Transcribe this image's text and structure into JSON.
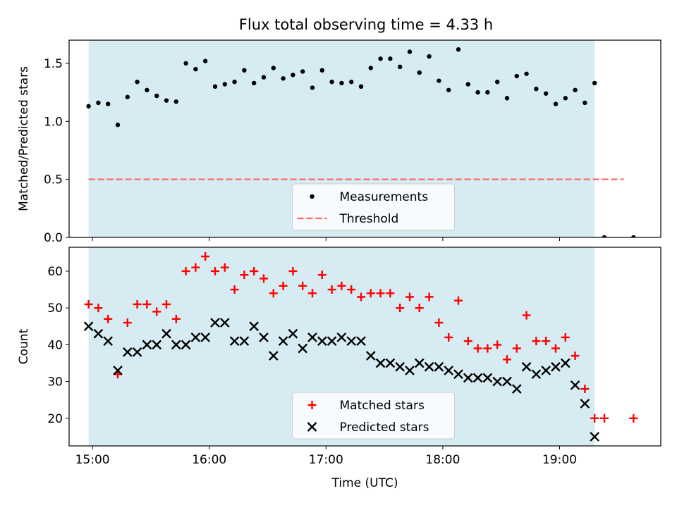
{
  "title": "Flux total observing time = 4.33 h",
  "colors": {
    "shade": "#add8e6",
    "matched": "#ff0000",
    "predicted": "#000000",
    "threshold": "#ff6666",
    "measurement": "#000000"
  },
  "chart_data": [
    {
      "type": "scatter",
      "panel": "top",
      "title": "Flux total observing time = 4.33 h",
      "xlabel": "",
      "ylabel": "Matched/Predicted stars",
      "xlim": [
        "14:48",
        "19:52"
      ],
      "ylim": [
        0,
        1.7
      ],
      "y_ticks": [
        "0.0",
        "0.5",
        "1.0",
        "1.5"
      ],
      "shaded_interval": [
        "14:58",
        "19:18"
      ],
      "legend_position": "lower center",
      "series": [
        {
          "name": "Measurements",
          "marker": "dot",
          "x": [
            "14:58",
            "15:03",
            "15:08",
            "15:13",
            "15:18",
            "15:23",
            "15:28",
            "15:33",
            "15:38",
            "15:43",
            "15:48",
            "15:53",
            "15:58",
            "16:03",
            "16:08",
            "16:13",
            "16:18",
            "16:23",
            "16:28",
            "16:33",
            "16:38",
            "16:43",
            "16:48",
            "16:53",
            "16:58",
            "17:03",
            "17:08",
            "17:13",
            "17:18",
            "17:23",
            "17:28",
            "17:33",
            "17:38",
            "17:43",
            "17:48",
            "17:53",
            "17:58",
            "18:03",
            "18:08",
            "18:13",
            "18:18",
            "18:23",
            "18:28",
            "18:33",
            "18:38",
            "18:43",
            "18:48",
            "18:53",
            "18:58",
            "19:03",
            "19:08",
            "19:13",
            "19:18",
            "19:23",
            "19:38"
          ],
          "y": [
            1.13,
            1.16,
            1.15,
            0.97,
            1.21,
            1.34,
            1.27,
            1.22,
            1.18,
            1.17,
            1.5,
            1.45,
            1.52,
            1.3,
            1.32,
            1.34,
            1.44,
            1.33,
            1.38,
            1.46,
            1.37,
            1.4,
            1.43,
            1.29,
            1.44,
            1.34,
            1.33,
            1.34,
            1.3,
            1.46,
            1.54,
            1.54,
            1.47,
            1.6,
            1.42,
            1.56,
            1.35,
            1.27,
            1.62,
            1.32,
            1.25,
            1.25,
            1.34,
            1.2,
            1.39,
            1.41,
            1.28,
            1.24,
            1.15,
            1.2,
            1.27,
            1.16,
            1.33,
            0.0,
            0.0
          ]
        },
        {
          "name": "Threshold",
          "style": "dashed",
          "x": [
            "14:58",
            "19:33"
          ],
          "y": [
            0.5,
            0.5
          ]
        }
      ]
    },
    {
      "type": "scatter",
      "panel": "bottom",
      "xlabel": "Time (UTC)",
      "ylabel": "Count",
      "xlim": [
        "14:48",
        "19:52"
      ],
      "ylim": [
        12.5,
        66.5
      ],
      "x_ticks": [
        "15:00",
        "16:00",
        "17:00",
        "18:00",
        "19:00"
      ],
      "y_ticks": [
        "20",
        "30",
        "40",
        "50",
        "60"
      ],
      "shaded_interval": [
        "14:58",
        "19:18"
      ],
      "legend_position": "lower center",
      "series": [
        {
          "name": "Matched stars",
          "marker": "plus",
          "x": [
            "14:58",
            "15:03",
            "15:08",
            "15:13",
            "15:18",
            "15:23",
            "15:28",
            "15:33",
            "15:38",
            "15:43",
            "15:48",
            "15:53",
            "15:58",
            "16:03",
            "16:08",
            "16:13",
            "16:18",
            "16:23",
            "16:28",
            "16:33",
            "16:38",
            "16:43",
            "16:48",
            "16:53",
            "16:58",
            "17:03",
            "17:08",
            "17:13",
            "17:18",
            "17:23",
            "17:28",
            "17:33",
            "17:38",
            "17:43",
            "17:48",
            "17:53",
            "17:58",
            "18:03",
            "18:08",
            "18:13",
            "18:18",
            "18:23",
            "18:28",
            "18:33",
            "18:38",
            "18:43",
            "18:48",
            "18:53",
            "18:58",
            "19:03",
            "19:08",
            "19:13",
            "19:18",
            "19:23",
            "19:38"
          ],
          "y": [
            51,
            50,
            47,
            32,
            46,
            51,
            51,
            49,
            51,
            47,
            60,
            61,
            64,
            60,
            61,
            55,
            59,
            60,
            58,
            54,
            56,
            60,
            56,
            54,
            59,
            55,
            56,
            55,
            53,
            54,
            54,
            54,
            50,
            53,
            50,
            53,
            46,
            42,
            52,
            41,
            39,
            39,
            40,
            36,
            39,
            48,
            41,
            41,
            39,
            42,
            37,
            28,
            20,
            20,
            20
          ]
        },
        {
          "name": "Predicted stars",
          "marker": "x",
          "x": [
            "14:58",
            "15:03",
            "15:08",
            "15:13",
            "15:18",
            "15:23",
            "15:28",
            "15:33",
            "15:38",
            "15:43",
            "15:48",
            "15:53",
            "15:58",
            "16:03",
            "16:08",
            "16:13",
            "16:18",
            "16:23",
            "16:28",
            "16:33",
            "16:38",
            "16:43",
            "16:48",
            "16:53",
            "16:58",
            "17:03",
            "17:08",
            "17:13",
            "17:18",
            "17:23",
            "17:28",
            "17:33",
            "17:38",
            "17:43",
            "17:48",
            "17:53",
            "17:58",
            "18:03",
            "18:08",
            "18:13",
            "18:18",
            "18:23",
            "18:28",
            "18:33",
            "18:38",
            "18:43",
            "18:48",
            "18:53",
            "18:58",
            "19:03",
            "19:08",
            "19:13",
            "19:18"
          ],
          "y": [
            45,
            43,
            41,
            33,
            38,
            38,
            40,
            40,
            43,
            40,
            40,
            42,
            42,
            46,
            46,
            41,
            41,
            45,
            42,
            37,
            41,
            43,
            39,
            42,
            41,
            41,
            42,
            41,
            41,
            37,
            35,
            35,
            34,
            33,
            35,
            34,
            34,
            33,
            32,
            31,
            31,
            31,
            30,
            30,
            28,
            34,
            32,
            33,
            34,
            35,
            29,
            24,
            15
          ]
        }
      ]
    }
  ]
}
